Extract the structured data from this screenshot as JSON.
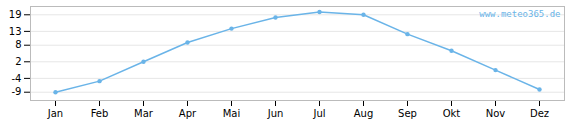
{
  "chart_data": {
    "type": "line",
    "categories": [
      "Jan",
      "Feb",
      "Mar",
      "Apr",
      "Mai",
      "Jun",
      "Jul",
      "Aug",
      "Sep",
      "Okt",
      "Nov",
      "Dez"
    ],
    "values": [
      -9,
      -5,
      2,
      9,
      14,
      18,
      20,
      19,
      12,
      6,
      -1,
      -8
    ],
    "color": "#6ab4e8",
    "marker": "circle",
    "ylim": [
      -12,
      22
    ],
    "yticks": [
      -9,
      -4,
      2,
      8,
      13,
      19
    ],
    "grid": true,
    "annotations": [
      "www.meteo365.de"
    ]
  }
}
